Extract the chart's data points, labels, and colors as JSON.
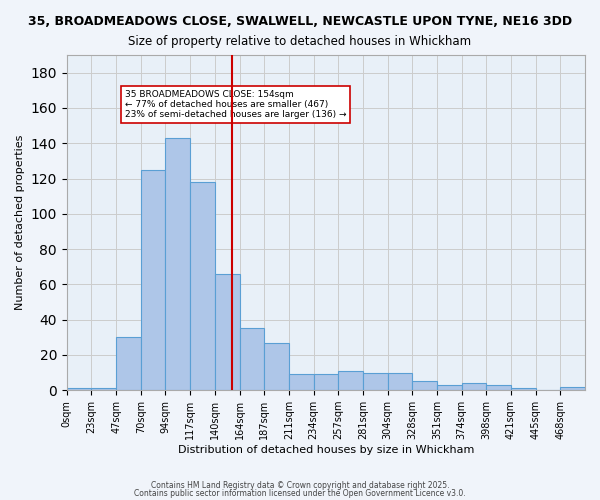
{
  "title_line1": "35, BROADMEADOWS CLOSE, SWALWELL, NEWCASTLE UPON TYNE, NE16 3DD",
  "title_line2": "Size of property relative to detached houses in Whickham",
  "xlabel": "Distribution of detached houses by size in Whickham",
  "ylabel": "Number of detached properties",
  "bar_labels": [
    "0sqm",
    "23sqm",
    "47sqm",
    "70sqm",
    "94sqm",
    "117sqm",
    "140sqm",
    "164sqm",
    "187sqm",
    "211sqm",
    "234sqm",
    "257sqm",
    "281sqm",
    "304sqm",
    "328sqm",
    "351sqm",
    "374sqm",
    "398sqm",
    "421sqm",
    "445sqm",
    "468sqm"
  ],
  "bar_values": [
    1,
    1,
    30,
    125,
    143,
    118,
    66,
    35,
    27,
    9,
    9,
    11,
    10,
    10,
    5,
    3,
    4,
    3,
    1,
    0,
    2
  ],
  "bar_color": "#aec6e8",
  "bar_edge_color": "#5a9fd4",
  "red_line_x": 154,
  "annotation_text": "35 BROADMEADOWS CLOSE: 154sqm\n← 77% of detached houses are smaller (467)\n23% of semi-detached houses are larger (136) →",
  "annotation_box_color": "#ffffff",
  "annotation_box_edge": "#cc0000",
  "annotation_text_color": "#000000",
  "vline_color": "#cc0000",
  "ylim": [
    0,
    190
  ],
  "yticks": [
    0,
    20,
    40,
    60,
    80,
    100,
    120,
    140,
    160,
    180
  ],
  "grid_color": "#cccccc",
  "bg_color": "#e8f0f8",
  "footer_line1": "Contains HM Land Registry data © Crown copyright and database right 2025.",
  "footer_line2": "Contains public sector information licensed under the Open Government Licence v3.0.",
  "bin_width": 23
}
